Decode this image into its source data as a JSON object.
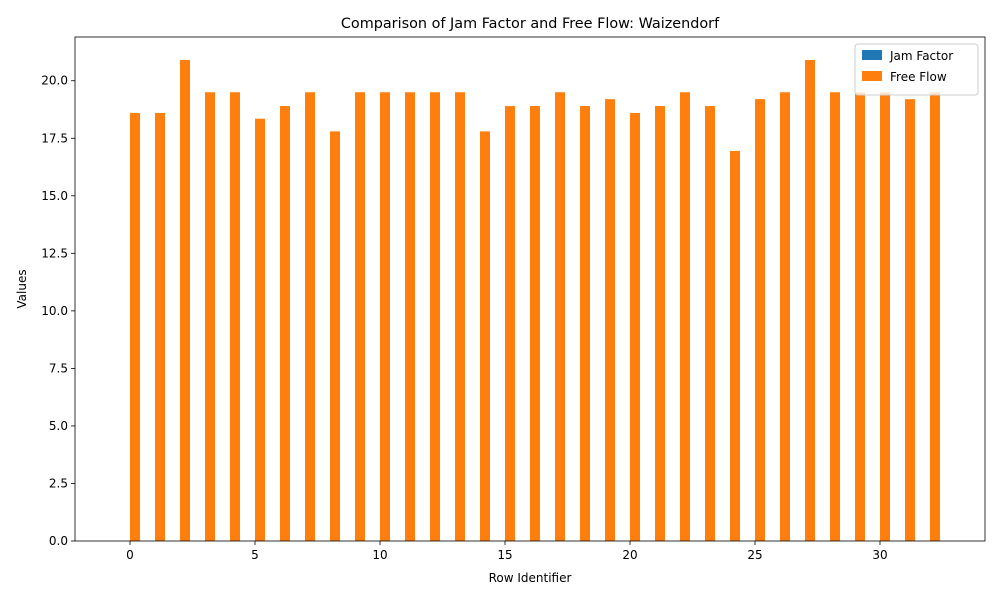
{
  "chart_data": {
    "type": "bar",
    "title": "Comparison of Jam Factor and Free Flow: Waizendorf",
    "xlabel": "Row Identifier",
    "ylabel": "Values",
    "x": [
      0,
      1,
      2,
      3,
      4,
      5,
      6,
      7,
      8,
      9,
      10,
      11,
      12,
      13,
      14,
      15,
      16,
      17,
      18,
      19,
      20,
      21,
      22,
      23,
      24,
      25,
      26,
      27,
      28,
      29,
      30,
      31,
      32
    ],
    "xlim": [
      -2.2,
      34.2
    ],
    "ylim": [
      0,
      21.9
    ],
    "xticks": [
      0,
      5,
      10,
      15,
      20,
      25,
      30
    ],
    "xtick_labels": [
      "0",
      "5",
      "10",
      "15",
      "20",
      "25",
      "30"
    ],
    "yticks": [
      0,
      2.5,
      5,
      7.5,
      10,
      12.5,
      15,
      17.5,
      20
    ],
    "ytick_labels": [
      "0.0",
      "2.5",
      "5.0",
      "7.5",
      "10.0",
      "12.5",
      "15.0",
      "17.5",
      "20.0"
    ],
    "legend_position": "top-right",
    "grid": false,
    "series": [
      {
        "name": "Jam Factor",
        "color": "#1f77b4",
        "values": [
          0,
          0,
          0,
          0,
          0,
          0,
          0,
          0,
          0,
          0,
          0,
          0,
          0,
          0,
          0,
          0,
          0,
          0,
          0,
          0,
          0,
          0,
          0,
          0,
          0,
          0,
          0,
          0,
          0,
          0,
          0,
          0,
          0
        ]
      },
      {
        "name": "Free Flow",
        "color": "#ff7f0e",
        "values": [
          18.6,
          18.6,
          20.9,
          19.5,
          19.5,
          18.35,
          18.9,
          19.5,
          17.8,
          19.5,
          19.5,
          19.5,
          19.5,
          19.5,
          17.8,
          18.9,
          18.9,
          19.5,
          18.9,
          19.2,
          18.6,
          18.9,
          19.5,
          18.9,
          16.95,
          19.2,
          19.5,
          20.9,
          19.5,
          19.5,
          19.5,
          19.2,
          19.5
        ]
      }
    ]
  }
}
